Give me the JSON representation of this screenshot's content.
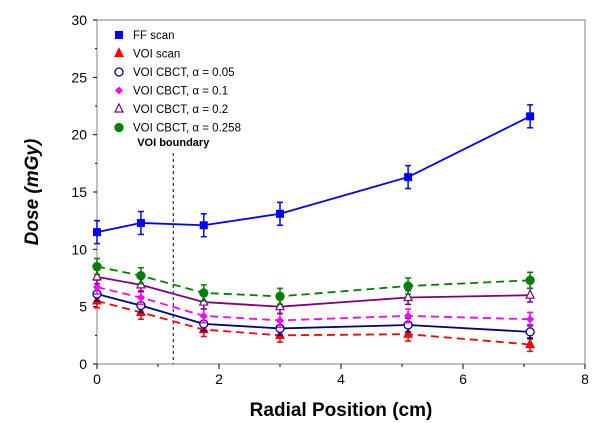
{
  "chart_data": {
    "type": "line",
    "title": "",
    "xlabel": "Radial Position (cm)",
    "ylabel": "Dose (mGy)",
    "xlim": [
      0,
      8
    ],
    "ylim": [
      0,
      30
    ],
    "xticks": [
      "0",
      "2",
      "4",
      "6",
      "8"
    ],
    "yticks": [
      "0",
      "5",
      "10",
      "15",
      "20",
      "25",
      "30"
    ],
    "grid": false,
    "legend_position": "top-left",
    "x": [
      0,
      0.72,
      1.75,
      3.0,
      5.1,
      7.1
    ],
    "annotation": {
      "label": "VOI boundary",
      "x": 1.25
    },
    "series": [
      {
        "name": "FF scan",
        "color": "#0000ff",
        "marker": "square",
        "dash": false,
        "values": [
          11.5,
          12.3,
          12.1,
          13.1,
          16.3,
          21.6
        ],
        "error": 1.0
      },
      {
        "name": "VOI scan",
        "color": "#ff0000",
        "marker": "triangle-filled",
        "dash": true,
        "values": [
          5.5,
          4.5,
          3.0,
          2.5,
          2.6,
          1.7
        ],
        "error": 0.6
      },
      {
        "name": "VOI CBCT,  α = 0.05",
        "color": "#000080",
        "marker": "circle-open",
        "dash": false,
        "values": [
          6.1,
          5.1,
          3.5,
          3.1,
          3.4,
          2.8
        ],
        "error": 0.6
      },
      {
        "name": "VOI CBCT,  α = 0.1",
        "color": "#ff00ff",
        "marker": "diamond-filled",
        "dash": true,
        "values": [
          6.7,
          5.8,
          4.2,
          3.8,
          4.2,
          3.9
        ],
        "error": 0.6
      },
      {
        "name": "VOI CBCT,  α = 0.2",
        "color": "#800080",
        "marker": "triangle-open",
        "dash": false,
        "values": [
          7.6,
          6.9,
          5.4,
          5.0,
          5.8,
          6.0
        ],
        "error": 0.6
      },
      {
        "name": "VOI CBCT,  α = 0.258",
        "color": "#008000",
        "marker": "circle-filled",
        "dash": true,
        "values": [
          8.5,
          7.7,
          6.2,
          5.9,
          6.8,
          7.3
        ],
        "error": 0.7
      }
    ]
  }
}
